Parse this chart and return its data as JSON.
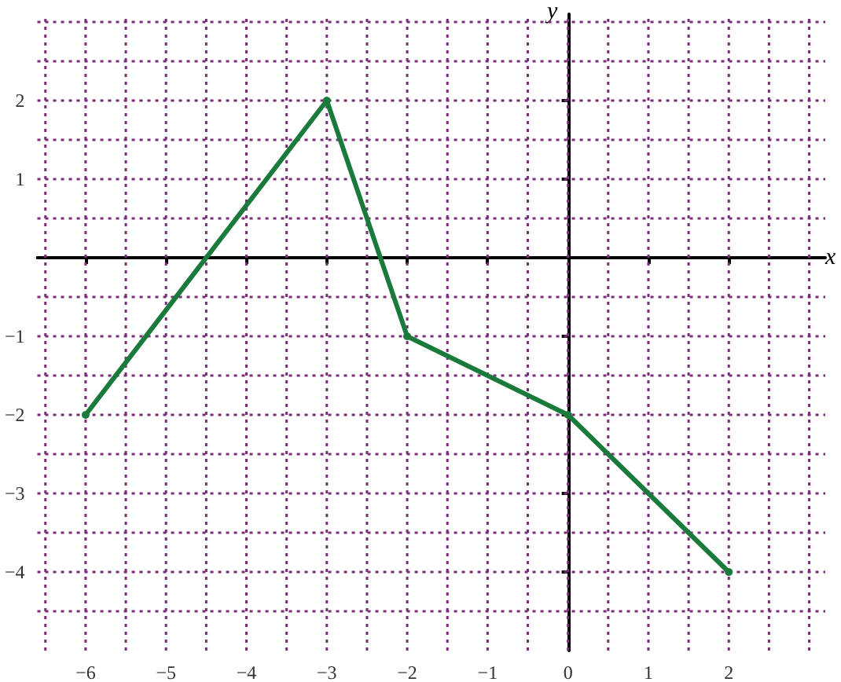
{
  "chart_data": {
    "type": "line",
    "xlabel": "x",
    "ylabel": "y",
    "x": [
      -6,
      -3,
      -2,
      0,
      2
    ],
    "series": [
      {
        "color": "#1a7a3c",
        "values": [
          -2,
          2,
          -1,
          -2,
          -4
        ]
      }
    ],
    "xlim": [
      -6.6,
      3.2
    ],
    "ylim": [
      -5,
      3.1
    ],
    "xticks": [
      {
        "value": -6.5,
        "label": null
      },
      -6,
      {
        "value": -5.5,
        "label": null
      },
      -5,
      {
        "value": -4.5,
        "label": null
      },
      -4,
      {
        "value": -3.5,
        "label": null
      },
      -3,
      {
        "value": -2.5,
        "label": null
      },
      -2,
      {
        "value": -1.5,
        "label": null
      },
      -1,
      {
        "value": -0.5,
        "label": null
      },
      0,
      {
        "value": 0.5,
        "label": null
      },
      1,
      {
        "value": 1.5,
        "label": null
      },
      2,
      {
        "value": 2.5,
        "label": null
      },
      {
        "value": 3,
        "label": null
      }
    ],
    "yticks": [
      {
        "value": -4.5,
        "label": null
      },
      -4,
      {
        "value": -3.5,
        "label": null
      },
      -3,
      {
        "value": -2.5,
        "label": null
      },
      -2,
      {
        "value": -1.5,
        "label": null
      },
      -1,
      {
        "value": -0.5,
        "label": null
      },
      {
        "value": 0.5,
        "label": null
      },
      1,
      {
        "value": 1.5,
        "label": null
      },
      2,
      {
        "value": 2.5,
        "label": null
      },
      {
        "value": 3,
        "label": null
      }
    ],
    "grid": true,
    "marker": "circle",
    "line_style": "solid"
  }
}
